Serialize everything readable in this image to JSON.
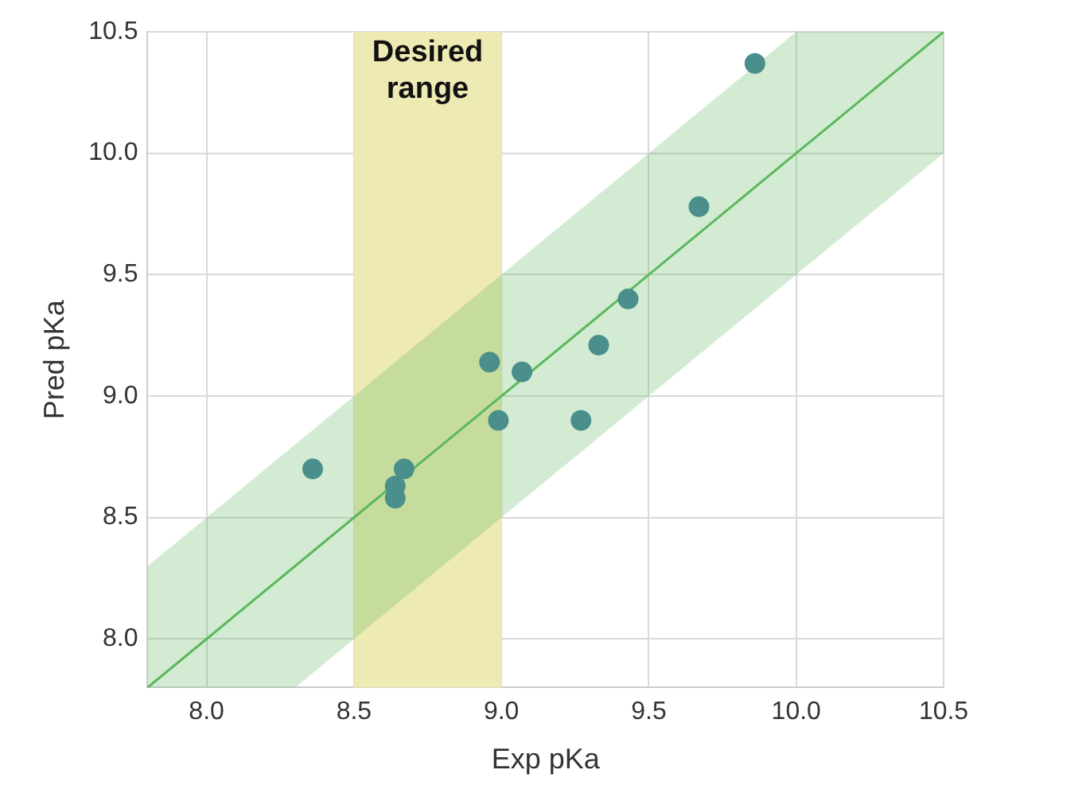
{
  "chart_data": {
    "type": "scatter",
    "xlabel": "Exp pKa",
    "ylabel": "Pred pKa",
    "xlim": [
      7.8,
      10.5
    ],
    "ylim": [
      7.8,
      10.5
    ],
    "xticks": [
      {
        "value": 8,
        "label": "8.0"
      },
      8.5,
      {
        "value": 9,
        "label": "9.0"
      },
      9.5,
      {
        "value": 10,
        "label": "10.0"
      },
      10.5
    ],
    "yticks": [
      {
        "value": 8,
        "label": "8.0"
      },
      8.5,
      {
        "value": 9,
        "label": "9.0"
      },
      9.5,
      {
        "value": 10,
        "label": "10.0"
      },
      10.5
    ],
    "grid": true,
    "legend": false,
    "bands": [
      {
        "axis": "x",
        "from": 8.5,
        "to": 9.0,
        "label": "Desired range",
        "color": "#eeeab4"
      }
    ],
    "series": [
      {
        "type": "line",
        "color": "#5cb85c",
        "marker": "none",
        "x": [
          7.8,
          8.3,
          10.0,
          10.5
        ],
        "values": [
          7.8,
          8.3,
          10.0,
          10.5
        ],
        "lower": [
          7.8,
          7.8,
          9.5,
          10.0
        ],
        "upper": [
          8.3,
          8.8,
          10.5,
          10.5
        ],
        "line_style": "solid"
      },
      {
        "color": "#4a8f8c",
        "marker": "circle",
        "x": [
          8.36,
          8.64,
          8.64,
          8.67,
          8.96,
          8.99,
          9.07,
          9.33,
          9.27,
          9.43,
          9.67,
          9.86
        ],
        "values": [
          8.7,
          8.63,
          8.58,
          8.7,
          9.14,
          8.9,
          9.1,
          9.21,
          8.9,
          9.4,
          9.78,
          10.37
        ]
      }
    ]
  }
}
